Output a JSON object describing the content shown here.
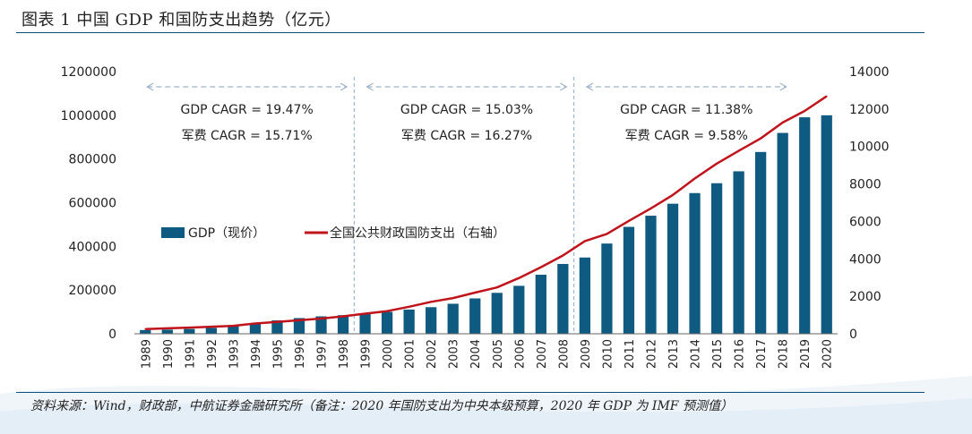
{
  "title": "图表 1 中国 GDP 和国防支出趋势（亿元）",
  "source": "资料来源：Wind，财政部，中航证券金融研究所（备注：2020 年国防支出为中央本级预算，2020 年 GDP 为 IMF 预测值）",
  "colors": {
    "bar": "#0f5a80",
    "line": "#c0141c",
    "text": "#222222",
    "arrow": "#9fb4c8"
  },
  "chart_data": {
    "type": "bar+line",
    "categories": [
      "1989",
      "1990",
      "1991",
      "1992",
      "1993",
      "1994",
      "1995",
      "1996",
      "1997",
      "1998",
      "1999",
      "2000",
      "2001",
      "2002",
      "2003",
      "2004",
      "2005",
      "2006",
      "2007",
      "2008",
      "2009",
      "2010",
      "2011",
      "2012",
      "2013",
      "2014",
      "2015",
      "2016",
      "2017",
      "2018",
      "2019",
      "2020"
    ],
    "series": [
      {
        "name": "GDP（现价）",
        "type": "bar",
        "axis": "left",
        "values": [
          17180,
          18873,
          22006,
          27195,
          35673,
          48638,
          61340,
          71814,
          79715,
          85196,
          90564,
          100280,
          110863,
          121717,
          137422,
          161840,
          187319,
          219439,
          270232,
          319516,
          349081,
          413030,
          489301,
          540367,
          595244,
          643974,
          689052,
          743586,
          832036,
          919281,
          990865,
          1000000
        ]
      },
      {
        "name": "全国公共财政国防支出（右轴）",
        "type": "line",
        "axis": "right",
        "values": [
          251,
          290,
          330,
          378,
          426,
          551,
          637,
          720,
          813,
          934,
          1076,
          1208,
          1442,
          1708,
          1908,
          2200,
          2475,
          2979,
          3555,
          4179,
          4951,
          5333,
          6028,
          6692,
          7411,
          8290,
          9088,
          9766,
          10432,
          11280,
          11900,
          12680
        ]
      }
    ],
    "y_left": {
      "min": 0,
      "max": 1200000,
      "ticks": [
        0,
        200000,
        400000,
        600000,
        800000,
        1000000,
        1200000
      ]
    },
    "y_right": {
      "min": 0,
      "max": 14000,
      "ticks": [
        0,
        2000,
        4000,
        6000,
        8000,
        10000,
        12000,
        14000
      ]
    },
    "annotations": [
      {
        "gdp": "GDP CAGR = 19.47%",
        "mil": "军费 CAGR = 15.71%",
        "from": "1989",
        "to": "1998"
      },
      {
        "gdp": "GDP CAGR = 15.03%",
        "mil": "军费 CAGR = 16.27%",
        "from": "1999",
        "to": "2008"
      },
      {
        "gdp": "GDP CAGR = 11.38%",
        "mil": "军费 CAGR = 9.58%",
        "from": "2009",
        "to": "2018"
      }
    ],
    "legend_position": "center-left",
    "grid": false
  }
}
